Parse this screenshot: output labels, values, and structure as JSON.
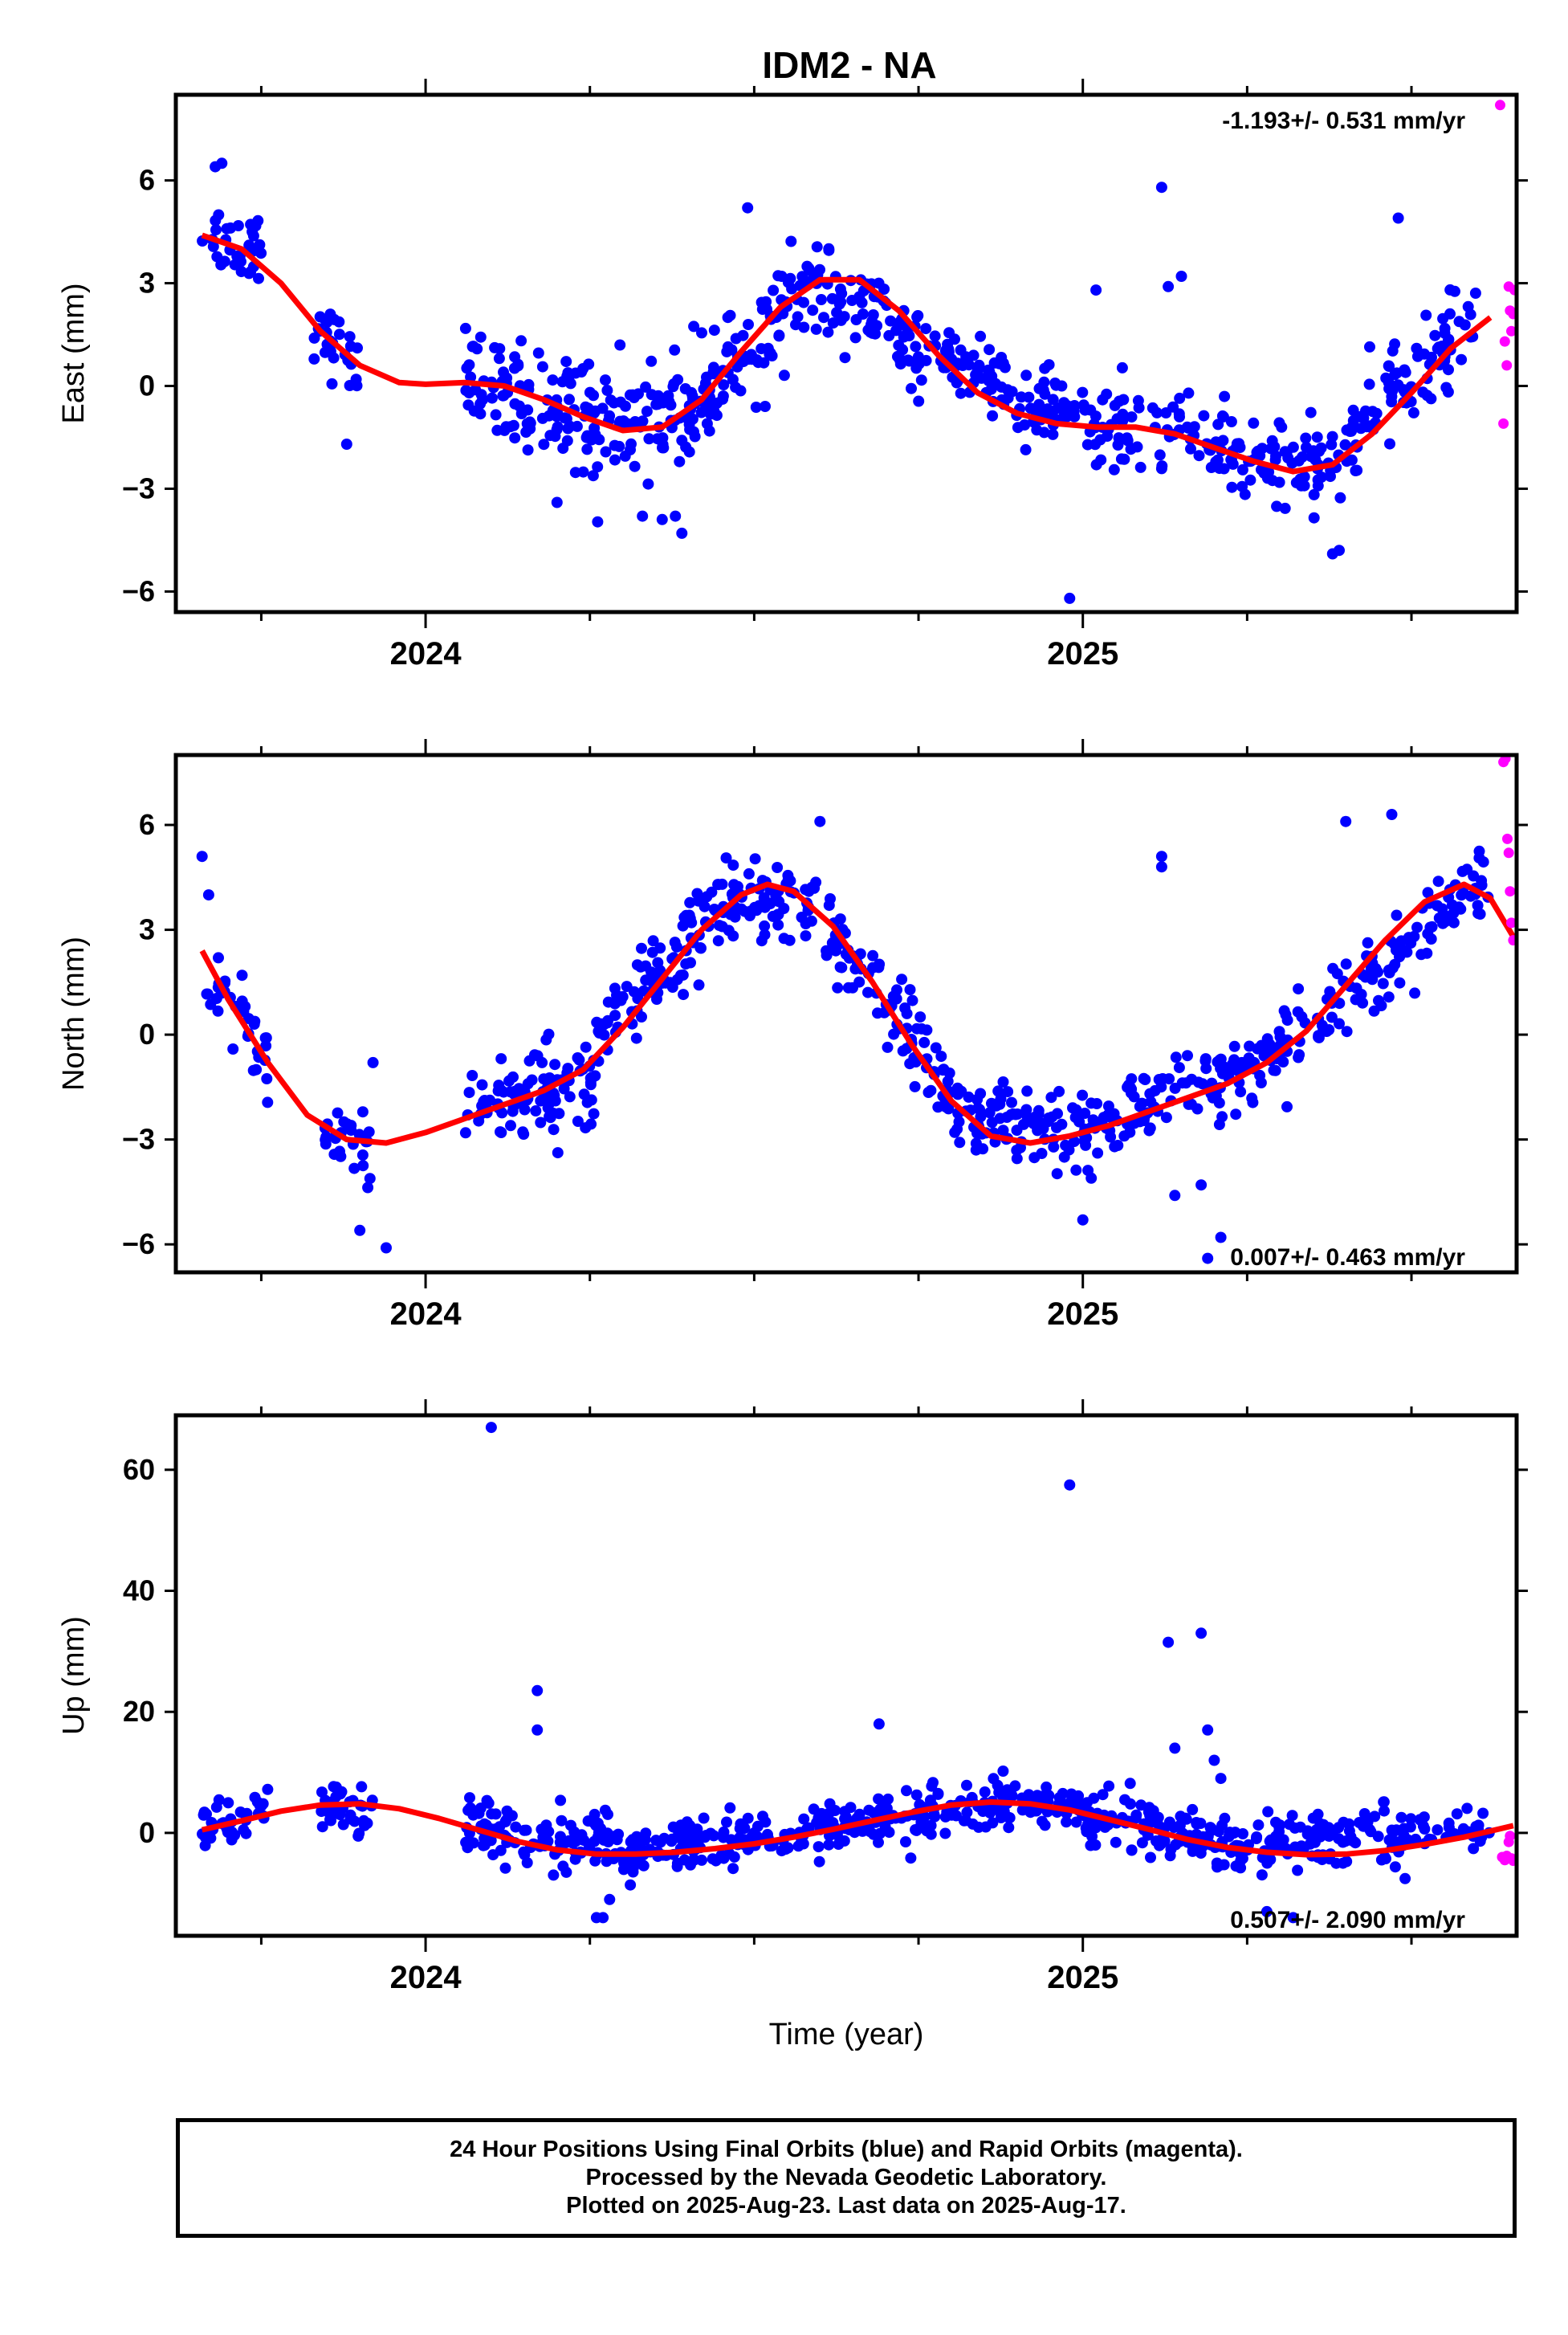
{
  "title": "IDM2 - NA",
  "colors": {
    "final_orbits": "#0000ff",
    "rapid_orbits": "#ff00ff",
    "model_curve": "#ff0000",
    "frame": "#000000",
    "background": "#ffffff"
  },
  "footer": {
    "line1": "24 Hour Positions Using Final Orbits (blue) and Rapid Orbits (magenta).",
    "line2": "Processed by the Nevada Geodetic Laboratory.",
    "line3": "Plotted on 2025-Aug-23. Last data on 2025-Aug-17."
  },
  "chart_data": [
    {
      "type": "scatter",
      "ylabel": "East (mm)",
      "xlabel": "",
      "annotation": "-1.193+/- 0.531 mm/yr",
      "xlim": [
        2023.62,
        2025.66
      ],
      "ylim": [
        -6.6,
        8.5
      ],
      "yticks": [
        -6,
        -3,
        0,
        3,
        6
      ],
      "xticks": [
        2024,
        2025
      ],
      "x_minor_ticks": [
        2023.75,
        2024.25,
        2024.5,
        2024.75,
        2025.25,
        2025.5
      ],
      "grid": false,
      "model_curve": {
        "x": [
          2023.66,
          2023.72,
          2023.78,
          2023.84,
          2023.9,
          2023.96,
          2024.0,
          2024.06,
          2024.12,
          2024.18,
          2024.24,
          2024.3,
          2024.36,
          2024.42,
          2024.48,
          2024.54,
          2024.6,
          2024.66,
          2024.72,
          2024.78,
          2024.84,
          2024.9,
          2024.96,
          2025.02,
          2025.08,
          2025.14,
          2025.2,
          2025.26,
          2025.32,
          2025.38,
          2025.44,
          2025.5,
          2025.56,
          2025.62
        ],
        "y": [
          4.4,
          4.0,
          3.0,
          1.6,
          0.6,
          0.1,
          0.05,
          0.1,
          0.0,
          -0.4,
          -0.9,
          -1.3,
          -1.2,
          -0.4,
          1.0,
          2.3,
          3.1,
          3.1,
          2.2,
          0.9,
          -0.2,
          -0.8,
          -1.1,
          -1.2,
          -1.2,
          -1.4,
          -1.8,
          -2.2,
          -2.5,
          -2.3,
          -1.4,
          -0.2,
          1.1,
          2.0
        ]
      },
      "final_orbit_cloud": [
        {
          "x0": 2023.66,
          "x1": 2023.75,
          "center": [
            4.4,
            4.1
          ],
          "spread": 1.0,
          "count": 34
        },
        {
          "x0": 2023.83,
          "x1": 2023.91,
          "center": [
            1.6,
            0.6
          ],
          "spread": 0.9,
          "count": 30
        },
        {
          "x0": 2024.06,
          "x1": 2024.26,
          "center": [
            0.05,
            -0.9
          ],
          "spread": 1.4,
          "count": 110
        },
        {
          "x0": 2024.26,
          "x1": 2024.42,
          "center": [
            -1.1,
            -0.6
          ],
          "spread": 1.5,
          "count": 80
        },
        {
          "x0": 2024.42,
          "x1": 2024.58,
          "center": [
            -0.4,
            2.7
          ],
          "spread": 1.3,
          "count": 80
        },
        {
          "x0": 2024.58,
          "x1": 2024.76,
          "center": [
            2.9,
            1.0
          ],
          "spread": 1.1,
          "count": 90
        },
        {
          "x0": 2024.76,
          "x1": 2025.02,
          "center": [
            1.0,
            -1.2
          ],
          "spread": 1.0,
          "count": 120
        },
        {
          "x0": 2025.02,
          "x1": 2025.4,
          "center": [
            -1.2,
            -2.4
          ],
          "spread": 1.1,
          "count": 150
        },
        {
          "x0": 2025.4,
          "x1": 2025.6,
          "center": [
            -1.6,
            2.0
          ],
          "spread": 1.2,
          "count": 90
        }
      ],
      "final_orbit_outliers": {
        "x": [
          2023.68,
          2023.69,
          2023.88,
          2024.2,
          2024.33,
          2024.36,
          2024.38,
          2024.39,
          2024.46,
          2024.49,
          2024.98,
          2025.02,
          2025.12,
          2025.13,
          2025.15,
          2025.38,
          2025.39,
          2025.48
        ],
        "y": [
          6.4,
          6.5,
          -1.7,
          -3.4,
          -3.8,
          -3.9,
          -3.8,
          -4.3,
          2.0,
          5.2,
          -6.2,
          2.8,
          5.8,
          2.9,
          3.2,
          -4.9,
          -4.8,
          4.9
        ]
      },
      "rapid_orbits": {
        "x": [
          2025.635,
          2025.64,
          2025.642,
          2025.645,
          2025.648,
          2025.65,
          2025.652,
          2025.655,
          2025.657
        ],
        "y": [
          8.2,
          -1.1,
          1.3,
          0.6,
          2.9,
          2.2,
          1.6,
          2.1,
          2.8
        ]
      }
    },
    {
      "type": "scatter",
      "ylabel": "North (mm)",
      "xlabel": "",
      "annotation": "0.007+/- 0.463 mm/yr",
      "xlim": [
        2023.62,
        2025.66
      ],
      "ylim": [
        -6.8,
        8.0
      ],
      "yticks": [
        -6,
        -3,
        0,
        3,
        6
      ],
      "xticks": [
        2024,
        2025
      ],
      "x_minor_ticks": [
        2023.75,
        2024.25,
        2024.5,
        2024.75,
        2025.25,
        2025.5
      ],
      "grid": false,
      "model_curve": {
        "x": [
          2023.66,
          2023.7,
          2023.76,
          2023.82,
          2023.88,
          2023.94,
          2024.0,
          2024.06,
          2024.12,
          2024.18,
          2024.24,
          2024.3,
          2024.36,
          2024.42,
          2024.48,
          2024.52,
          2024.56,
          2024.62,
          2024.68,
          2024.74,
          2024.8,
          2024.86,
          2024.92,
          2024.98,
          2025.04,
          2025.1,
          2025.16,
          2025.22,
          2025.28,
          2025.34,
          2025.4,
          2025.46,
          2025.52,
          2025.58,
          2025.62,
          2025.655
        ],
        "y": [
          2.4,
          1.0,
          -0.8,
          -2.3,
          -3.0,
          -3.1,
          -2.8,
          -2.4,
          -2.0,
          -1.6,
          -1.0,
          0.2,
          1.6,
          3.0,
          4.0,
          4.3,
          4.1,
          3.1,
          1.5,
          -0.3,
          -1.9,
          -2.9,
          -3.1,
          -2.9,
          -2.6,
          -2.2,
          -1.8,
          -1.4,
          -0.8,
          0.1,
          1.4,
          2.7,
          3.8,
          4.3,
          3.9,
          2.8
        ]
      },
      "final_orbit_cloud": [
        {
          "x0": 2023.66,
          "x1": 2023.76,
          "center": [
            2.0,
            -0.8
          ],
          "spread": 1.0,
          "count": 36
        },
        {
          "x0": 2023.84,
          "x1": 2023.92,
          "center": [
            -2.6,
            -3.4
          ],
          "spread": 1.1,
          "count": 30
        },
        {
          "x0": 2024.06,
          "x1": 2024.26,
          "center": [
            -2.2,
            -1.2
          ],
          "spread": 1.2,
          "count": 100
        },
        {
          "x0": 2024.26,
          "x1": 2024.44,
          "center": [
            -0.2,
            3.5
          ],
          "spread": 1.1,
          "count": 90
        },
        {
          "x0": 2024.44,
          "x1": 2024.6,
          "center": [
            3.8,
            3.5
          ],
          "spread": 1.1,
          "count": 80
        },
        {
          "x0": 2024.6,
          "x1": 2024.8,
          "center": [
            3.2,
            -1.6
          ],
          "spread": 1.1,
          "count": 90
        },
        {
          "x0": 2024.8,
          "x1": 2025.0,
          "center": [
            -2.2,
            -2.8
          ],
          "spread": 0.9,
          "count": 90
        },
        {
          "x0": 2025.0,
          "x1": 2025.3,
          "center": [
            -2.8,
            -0.6
          ],
          "spread": 0.9,
          "count": 130
        },
        {
          "x0": 2025.3,
          "x1": 2025.62,
          "center": [
            -0.4,
            4.6
          ],
          "spread": 1.0,
          "count": 120
        }
      ],
      "final_orbit_outliers": {
        "x": [
          2023.66,
          2023.67,
          2023.9,
          2023.92,
          2023.94,
          2024.6,
          2025.0,
          2025.12,
          2025.12,
          2025.14,
          2025.18,
          2025.19,
          2025.21,
          2025.4,
          2025.47
        ],
        "y": [
          5.1,
          4.0,
          -5.6,
          -0.8,
          -6.1,
          6.1,
          -5.3,
          5.1,
          4.8,
          -4.6,
          -4.3,
          -6.4,
          -5.8,
          6.1,
          6.3
        ]
      },
      "rapid_orbits": {
        "x": [
          2025.64,
          2025.643,
          2025.646,
          2025.648,
          2025.65,
          2025.652,
          2025.655
        ],
        "y": [
          7.8,
          7.9,
          5.6,
          5.2,
          4.1,
          3.2,
          2.7
        ]
      }
    },
    {
      "type": "scatter",
      "ylabel": "Up (mm)",
      "xlabel": "Time (year)",
      "annotation": "0.507+/- 2.090 mm/yr",
      "xlim": [
        2023.62,
        2025.66
      ],
      "ylim": [
        -17,
        69
      ],
      "yticks": [
        0,
        20,
        40,
        60
      ],
      "xticks": [
        2024,
        2025
      ],
      "x_minor_ticks": [
        2023.75,
        2024.25,
        2024.5,
        2024.75,
        2025.25,
        2025.5
      ],
      "grid": false,
      "model_curve": {
        "x": [
          2023.66,
          2023.72,
          2023.78,
          2023.84,
          2023.9,
          2023.96,
          2024.02,
          2024.08,
          2024.14,
          2024.2,
          2024.26,
          2024.32,
          2024.38,
          2024.44,
          2024.5,
          2024.56,
          2024.62,
          2024.68,
          2024.74,
          2024.8,
          2024.86,
          2024.92,
          2024.98,
          2025.04,
          2025.1,
          2025.16,
          2025.22,
          2025.28,
          2025.34,
          2025.4,
          2025.46,
          2025.52,
          2025.58,
          2025.62,
          2025.655
        ],
        "y": [
          0.5,
          2.0,
          3.6,
          4.6,
          4.8,
          4.0,
          2.4,
          0.5,
          -1.4,
          -2.8,
          -3.5,
          -3.5,
          -3.2,
          -2.6,
          -1.8,
          -0.7,
          0.6,
          2.0,
          3.4,
          4.6,
          5.1,
          4.8,
          3.8,
          2.2,
          0.6,
          -1.1,
          -2.4,
          -3.2,
          -3.6,
          -3.5,
          -2.9,
          -1.9,
          -0.7,
          0.3,
          1.2
        ]
      },
      "final_orbit_cloud": [
        {
          "x0": 2023.66,
          "x1": 2023.76,
          "center": [
            0.5,
            2.8
          ],
          "spread": 4.0,
          "count": 40
        },
        {
          "x0": 2023.84,
          "x1": 2023.92,
          "center": [
            4.6,
            4.6
          ],
          "spread": 4.0,
          "count": 35
        },
        {
          "x0": 2024.06,
          "x1": 2024.3,
          "center": [
            1.5,
            -3.2
          ],
          "spread": 4.5,
          "count": 120
        },
        {
          "x0": 2024.3,
          "x1": 2024.62,
          "center": [
            -3.4,
            0.6
          ],
          "spread": 4.0,
          "count": 150
        },
        {
          "x0": 2024.62,
          "x1": 2024.9,
          "center": [
            0.6,
            5.0
          ],
          "spread": 4.0,
          "count": 130
        },
        {
          "x0": 2024.9,
          "x1": 2025.2,
          "center": [
            5.0,
            -1.5
          ],
          "spread": 4.0,
          "count": 140
        },
        {
          "x0": 2025.2,
          "x1": 2025.62,
          "center": [
            -1.5,
            0.3
          ],
          "spread": 4.0,
          "count": 170
        }
      ],
      "final_orbit_outliers": {
        "x": [
          2024.1,
          2024.17,
          2024.17,
          2024.26,
          2024.27,
          2024.28,
          2024.69,
          2024.98,
          2025.13,
          2025.18,
          2025.19,
          2025.2,
          2025.21,
          2025.14,
          2025.28,
          2025.32
        ],
        "y": [
          67,
          23.5,
          17,
          -14,
          -14,
          -11,
          18,
          57.5,
          31.5,
          33,
          17,
          12,
          9,
          14,
          -13,
          -14
        ]
      },
      "rapid_orbits": {
        "x": [
          2025.638,
          2025.642,
          2025.645,
          2025.648,
          2025.65,
          2025.652,
          2025.655
        ],
        "y": [
          -4.0,
          -4.5,
          -3.8,
          -1.5,
          -0.5,
          -4.2,
          -4.6
        ]
      }
    }
  ]
}
